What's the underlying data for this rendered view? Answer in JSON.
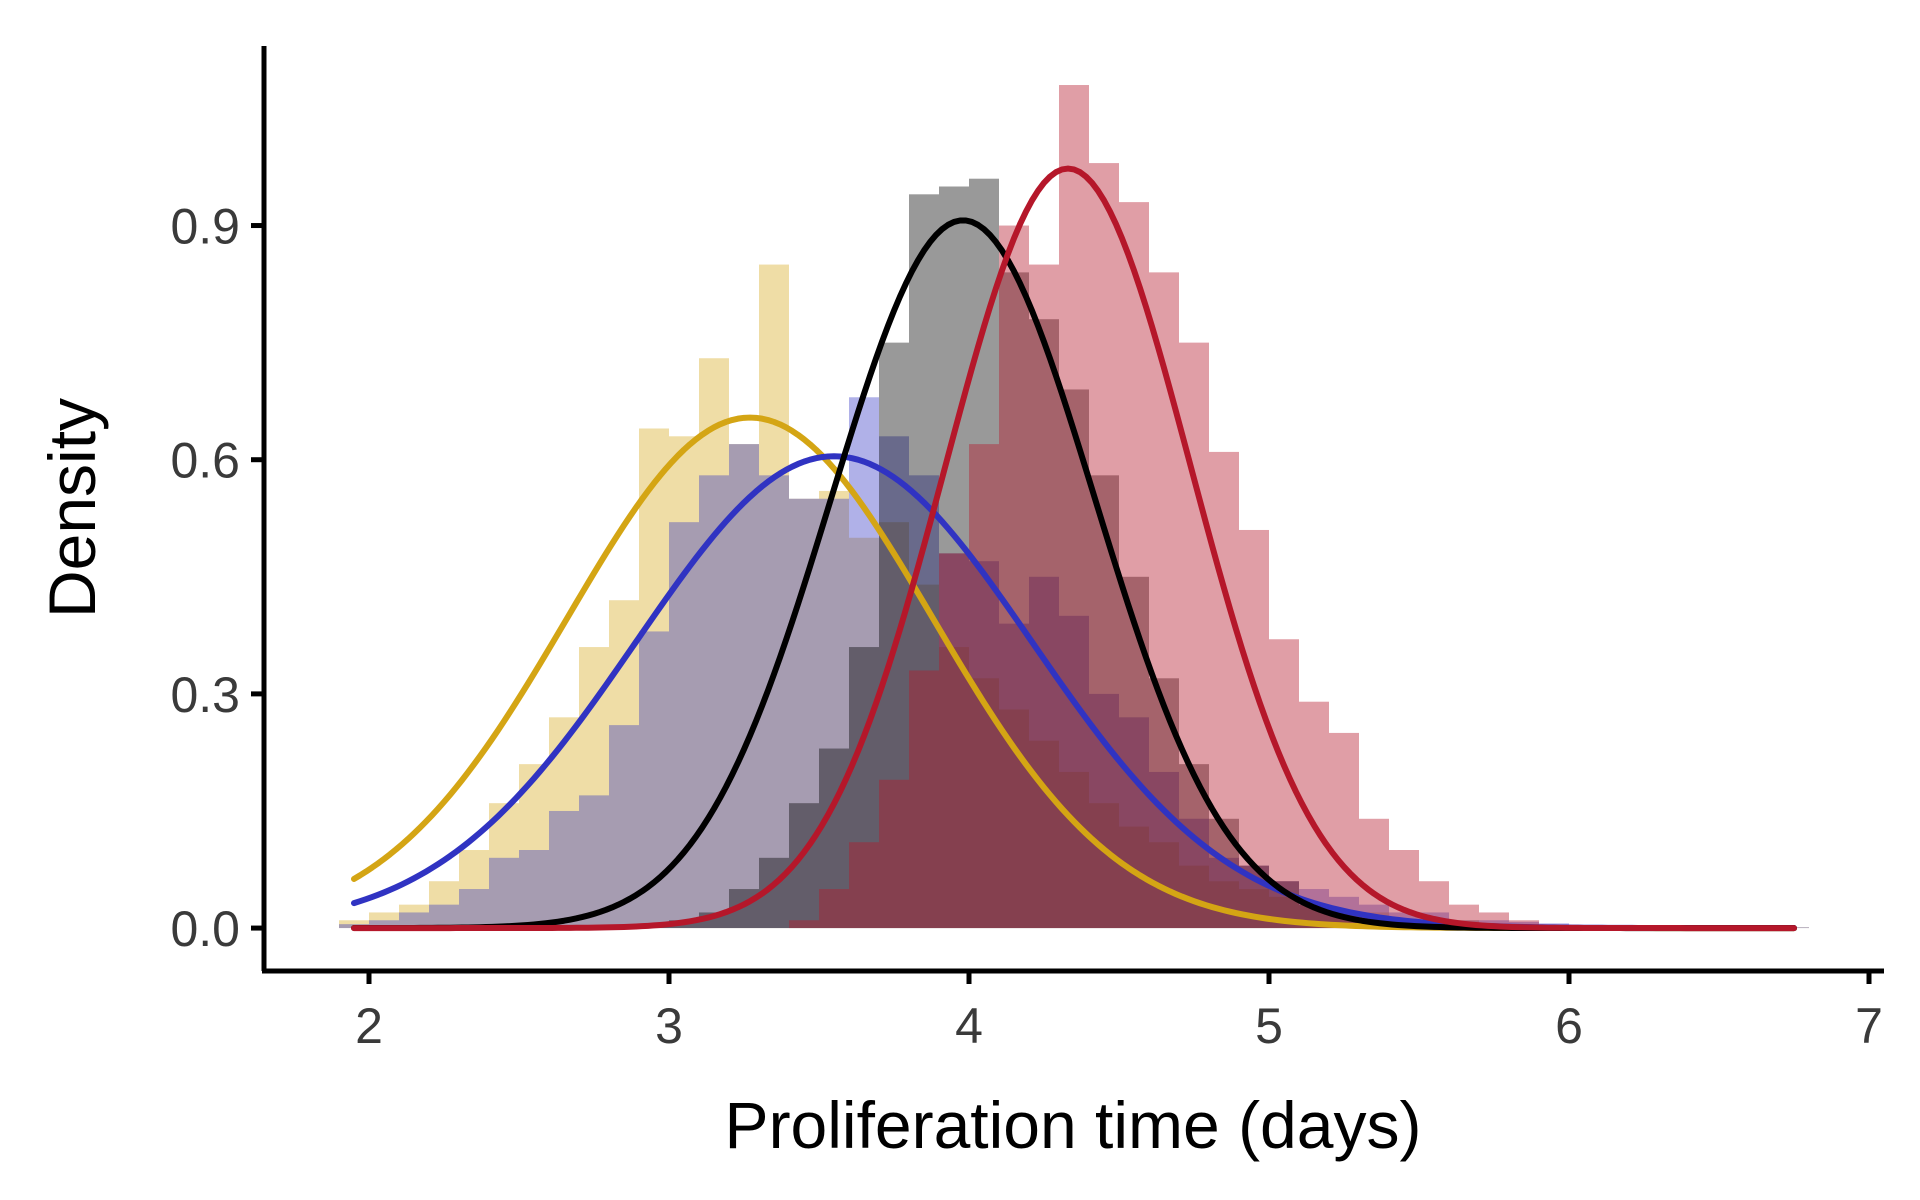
{
  "chart_data": {
    "type": "bar",
    "title": "",
    "xlabel": "Proliferation time (days)",
    "ylabel": "Density",
    "xlim": [
      1.65,
      7.05
    ],
    "ylim": [
      -0.055,
      1.13
    ],
    "x_ticks": [
      2,
      3,
      4,
      5,
      6,
      7
    ],
    "x_tick_labels": [
      "2",
      "3",
      "4",
      "5",
      "6",
      "7"
    ],
    "y_ticks": [
      0.0,
      0.3,
      0.6,
      0.9
    ],
    "y_tick_labels": [
      "0.0",
      "0.3",
      "0.6",
      "0.9"
    ],
    "grid": false,
    "legend": "none",
    "bin_width": 0.1,
    "series": [
      {
        "color": "#d4a514",
        "fill_opacity": 0.38,
        "curve": {
          "mean": 3.27,
          "sd": 0.61,
          "from": 1.95,
          "to": 6.75
        },
        "bins": [
          {
            "x": 1.95,
            "density": 0.01
          },
          {
            "x": 2.05,
            "density": 0.02
          },
          {
            "x": 2.15,
            "density": 0.03
          },
          {
            "x": 2.25,
            "density": 0.06
          },
          {
            "x": 2.35,
            "density": 0.1
          },
          {
            "x": 2.45,
            "density": 0.16
          },
          {
            "x": 2.55,
            "density": 0.21
          },
          {
            "x": 2.65,
            "density": 0.27
          },
          {
            "x": 2.75,
            "density": 0.36
          },
          {
            "x": 2.85,
            "density": 0.42
          },
          {
            "x": 2.95,
            "density": 0.64
          },
          {
            "x": 3.05,
            "density": 0.63
          },
          {
            "x": 3.15,
            "density": 0.73
          },
          {
            "x": 3.25,
            "density": 0.62
          },
          {
            "x": 3.35,
            "density": 0.85
          },
          {
            "x": 3.45,
            "density": 0.55
          },
          {
            "x": 3.55,
            "density": 0.56
          },
          {
            "x": 3.65,
            "density": 0.5
          },
          {
            "x": 3.75,
            "density": 0.52
          },
          {
            "x": 3.85,
            "density": 0.44
          },
          {
            "x": 3.95,
            "density": 0.36
          },
          {
            "x": 4.05,
            "density": 0.32
          },
          {
            "x": 4.15,
            "density": 0.28
          },
          {
            "x": 4.25,
            "density": 0.24
          },
          {
            "x": 4.35,
            "density": 0.2
          },
          {
            "x": 4.45,
            "density": 0.16
          },
          {
            "x": 4.55,
            "density": 0.13
          },
          {
            "x": 4.65,
            "density": 0.11
          },
          {
            "x": 4.75,
            "density": 0.08
          },
          {
            "x": 4.85,
            "density": 0.06
          },
          {
            "x": 4.95,
            "density": 0.05
          },
          {
            "x": 5.05,
            "density": 0.04
          },
          {
            "x": 5.15,
            "density": 0.03
          },
          {
            "x": 5.25,
            "density": 0.02
          },
          {
            "x": 5.35,
            "density": 0.02
          },
          {
            "x": 5.45,
            "density": 0.01
          },
          {
            "x": 5.55,
            "density": 0.01
          },
          {
            "x": 5.65,
            "density": 0.01
          },
          {
            "x": 5.75,
            "density": 0.005
          },
          {
            "x": 5.85,
            "density": 0.005
          },
          {
            "x": 5.95,
            "density": 0.004
          },
          {
            "x": 6.05,
            "density": 0.003
          },
          {
            "x": 6.15,
            "density": 0.003
          },
          {
            "x": 6.25,
            "density": 0.002
          },
          {
            "x": 6.35,
            "density": 0.002
          },
          {
            "x": 6.45,
            "density": 0.002
          },
          {
            "x": 6.55,
            "density": 0.001
          },
          {
            "x": 6.65,
            "density": 0.001
          },
          {
            "x": 6.75,
            "density": 0.001
          }
        ]
      },
      {
        "color": "#3033c2",
        "fill_opacity": 0.38,
        "curve": {
          "mean": 3.55,
          "sd": 0.66,
          "from": 1.95,
          "to": 6.75
        },
        "bins": [
          {
            "x": 1.95,
            "density": 0.005
          },
          {
            "x": 2.05,
            "density": 0.01
          },
          {
            "x": 2.15,
            "density": 0.02
          },
          {
            "x": 2.25,
            "density": 0.03
          },
          {
            "x": 2.35,
            "density": 0.05
          },
          {
            "x": 2.45,
            "density": 0.09
          },
          {
            "x": 2.55,
            "density": 0.1
          },
          {
            "x": 2.65,
            "density": 0.15
          },
          {
            "x": 2.75,
            "density": 0.17
          },
          {
            "x": 2.85,
            "density": 0.26
          },
          {
            "x": 2.95,
            "density": 0.38
          },
          {
            "x": 3.05,
            "density": 0.52
          },
          {
            "x": 3.15,
            "density": 0.58
          },
          {
            "x": 3.25,
            "density": 0.62
          },
          {
            "x": 3.35,
            "density": 0.58
          },
          {
            "x": 3.45,
            "density": 0.55
          },
          {
            "x": 3.55,
            "density": 0.55
          },
          {
            "x": 3.65,
            "density": 0.68
          },
          {
            "x": 3.75,
            "density": 0.63
          },
          {
            "x": 3.85,
            "density": 0.58
          },
          {
            "x": 3.95,
            "density": 0.48
          },
          {
            "x": 4.05,
            "density": 0.47
          },
          {
            "x": 4.15,
            "density": 0.39
          },
          {
            "x": 4.25,
            "density": 0.45
          },
          {
            "x": 4.35,
            "density": 0.4
          },
          {
            "x": 4.45,
            "density": 0.3
          },
          {
            "x": 4.55,
            "density": 0.27
          },
          {
            "x": 4.65,
            "density": 0.2
          },
          {
            "x": 4.75,
            "density": 0.14
          },
          {
            "x": 4.85,
            "density": 0.09
          },
          {
            "x": 4.95,
            "density": 0.08
          },
          {
            "x": 5.05,
            "density": 0.06
          },
          {
            "x": 5.15,
            "density": 0.05
          },
          {
            "x": 5.25,
            "density": 0.04
          },
          {
            "x": 5.35,
            "density": 0.03
          },
          {
            "x": 5.45,
            "density": 0.02
          },
          {
            "x": 5.55,
            "density": 0.02
          },
          {
            "x": 5.65,
            "density": 0.01
          },
          {
            "x": 5.75,
            "density": 0.01
          },
          {
            "x": 5.85,
            "density": 0.008
          },
          {
            "x": 5.95,
            "density": 0.006
          },
          {
            "x": 6.05,
            "density": 0.004
          },
          {
            "x": 6.15,
            "density": 0.003
          },
          {
            "x": 6.25,
            "density": 0.002
          },
          {
            "x": 6.35,
            "density": 0.002
          },
          {
            "x": 6.45,
            "density": 0.001
          },
          {
            "x": 6.55,
            "density": 0.001
          },
          {
            "x": 6.65,
            "density": 0.001
          },
          {
            "x": 6.75,
            "density": 0.001
          }
        ]
      },
      {
        "color": "#000000",
        "fill_opacity": 0.4,
        "curve": {
          "mean": 3.98,
          "sd": 0.44,
          "from": 1.95,
          "to": 6.75
        },
        "bins": [
          {
            "x": 2.95,
            "density": 0.005
          },
          {
            "x": 3.05,
            "density": 0.01
          },
          {
            "x": 3.15,
            "density": 0.02
          },
          {
            "x": 3.25,
            "density": 0.05
          },
          {
            "x": 3.35,
            "density": 0.09
          },
          {
            "x": 3.45,
            "density": 0.16
          },
          {
            "x": 3.55,
            "density": 0.23
          },
          {
            "x": 3.65,
            "density": 0.36
          },
          {
            "x": 3.75,
            "density": 0.75
          },
          {
            "x": 3.85,
            "density": 0.94
          },
          {
            "x": 3.95,
            "density": 0.95
          },
          {
            "x": 4.05,
            "density": 0.96
          },
          {
            "x": 4.15,
            "density": 0.84
          },
          {
            "x": 4.25,
            "density": 0.78
          },
          {
            "x": 4.35,
            "density": 0.69
          },
          {
            "x": 4.45,
            "density": 0.58
          },
          {
            "x": 4.55,
            "density": 0.45
          },
          {
            "x": 4.65,
            "density": 0.32
          },
          {
            "x": 4.75,
            "density": 0.21
          },
          {
            "x": 4.85,
            "density": 0.14
          },
          {
            "x": 4.95,
            "density": 0.08
          },
          {
            "x": 5.05,
            "density": 0.06
          },
          {
            "x": 5.15,
            "density": 0.03
          },
          {
            "x": 5.25,
            "density": 0.02
          },
          {
            "x": 5.35,
            "density": 0.01
          }
        ]
      },
      {
        "color": "#b5172a",
        "fill_opacity": 0.42,
        "curve": {
          "mean": 4.33,
          "sd": 0.41,
          "from": 1.95,
          "to": 6.75
        },
        "bins": [
          {
            "x": 3.45,
            "density": 0.01
          },
          {
            "x": 3.55,
            "density": 0.05
          },
          {
            "x": 3.65,
            "density": 0.11
          },
          {
            "x": 3.75,
            "density": 0.19
          },
          {
            "x": 3.85,
            "density": 0.33
          },
          {
            "x": 3.95,
            "density": 0.48
          },
          {
            "x": 4.05,
            "density": 0.62
          },
          {
            "x": 4.15,
            "density": 0.9
          },
          {
            "x": 4.25,
            "density": 0.85
          },
          {
            "x": 4.35,
            "density": 1.08
          },
          {
            "x": 4.45,
            "density": 0.98
          },
          {
            "x": 4.55,
            "density": 0.93
          },
          {
            "x": 4.65,
            "density": 0.84
          },
          {
            "x": 4.75,
            "density": 0.75
          },
          {
            "x": 4.85,
            "density": 0.61
          },
          {
            "x": 4.95,
            "density": 0.51
          },
          {
            "x": 5.05,
            "density": 0.37
          },
          {
            "x": 5.15,
            "density": 0.29
          },
          {
            "x": 5.25,
            "density": 0.25
          },
          {
            "x": 5.35,
            "density": 0.14
          },
          {
            "x": 5.45,
            "density": 0.1
          },
          {
            "x": 5.55,
            "density": 0.06
          },
          {
            "x": 5.65,
            "density": 0.03
          },
          {
            "x": 5.75,
            "density": 0.02
          },
          {
            "x": 5.85,
            "density": 0.01
          }
        ]
      }
    ]
  }
}
